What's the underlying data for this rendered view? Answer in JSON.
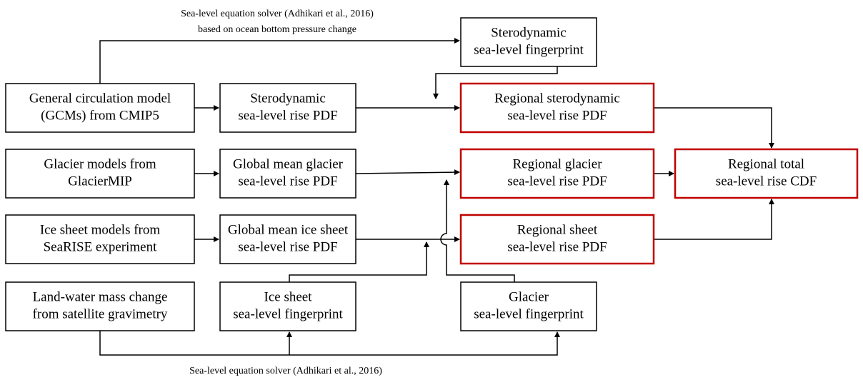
{
  "nodes": [
    {
      "lines": [
        "General circulation model",
        "(GCMs) from CMIP5"
      ]
    },
    {
      "lines": [
        "Glacier models from",
        "GlacierMIP"
      ]
    },
    {
      "lines": [
        "Ice sheet models from",
        "SeaRISE experiment"
      ]
    },
    {
      "lines": [
        "Land-water mass change",
        "from satellite gravimetry"
      ]
    },
    {
      "lines": [
        "Sterodynamic",
        "sea-level rise PDF"
      ]
    },
    {
      "lines": [
        "Global mean glacier",
        "sea-level rise PDF"
      ]
    },
    {
      "lines": [
        "Global mean ice sheet",
        "sea-level rise PDF"
      ]
    },
    {
      "lines": [
        "Ice sheet",
        "sea-level fingerprint"
      ]
    },
    {
      "lines": [
        "Sterodynamic",
        "sea-level fingerprint"
      ]
    },
    {
      "lines": [
        "Regional sterodynamic",
        "sea-level rise PDF"
      ]
    },
    {
      "lines": [
        "Regional glacier",
        "sea-level rise PDF"
      ]
    },
    {
      "lines": [
        "Regional sheet",
        "sea-level rise PDF"
      ]
    },
    {
      "lines": [
        "Glacier",
        "sea-level fingerprint"
      ]
    },
    {
      "lines": [
        "Regional total",
        "sea-level rise CDF"
      ]
    }
  ],
  "edge_labels": {
    "top": [
      "Sea-level equation solver (Adhikari et al., 2016)",
      "based on ocean bottom pressure change"
    ],
    "bottom": [
      "Sea-level equation solver (Adhikari et al., 2016)"
    ]
  }
}
